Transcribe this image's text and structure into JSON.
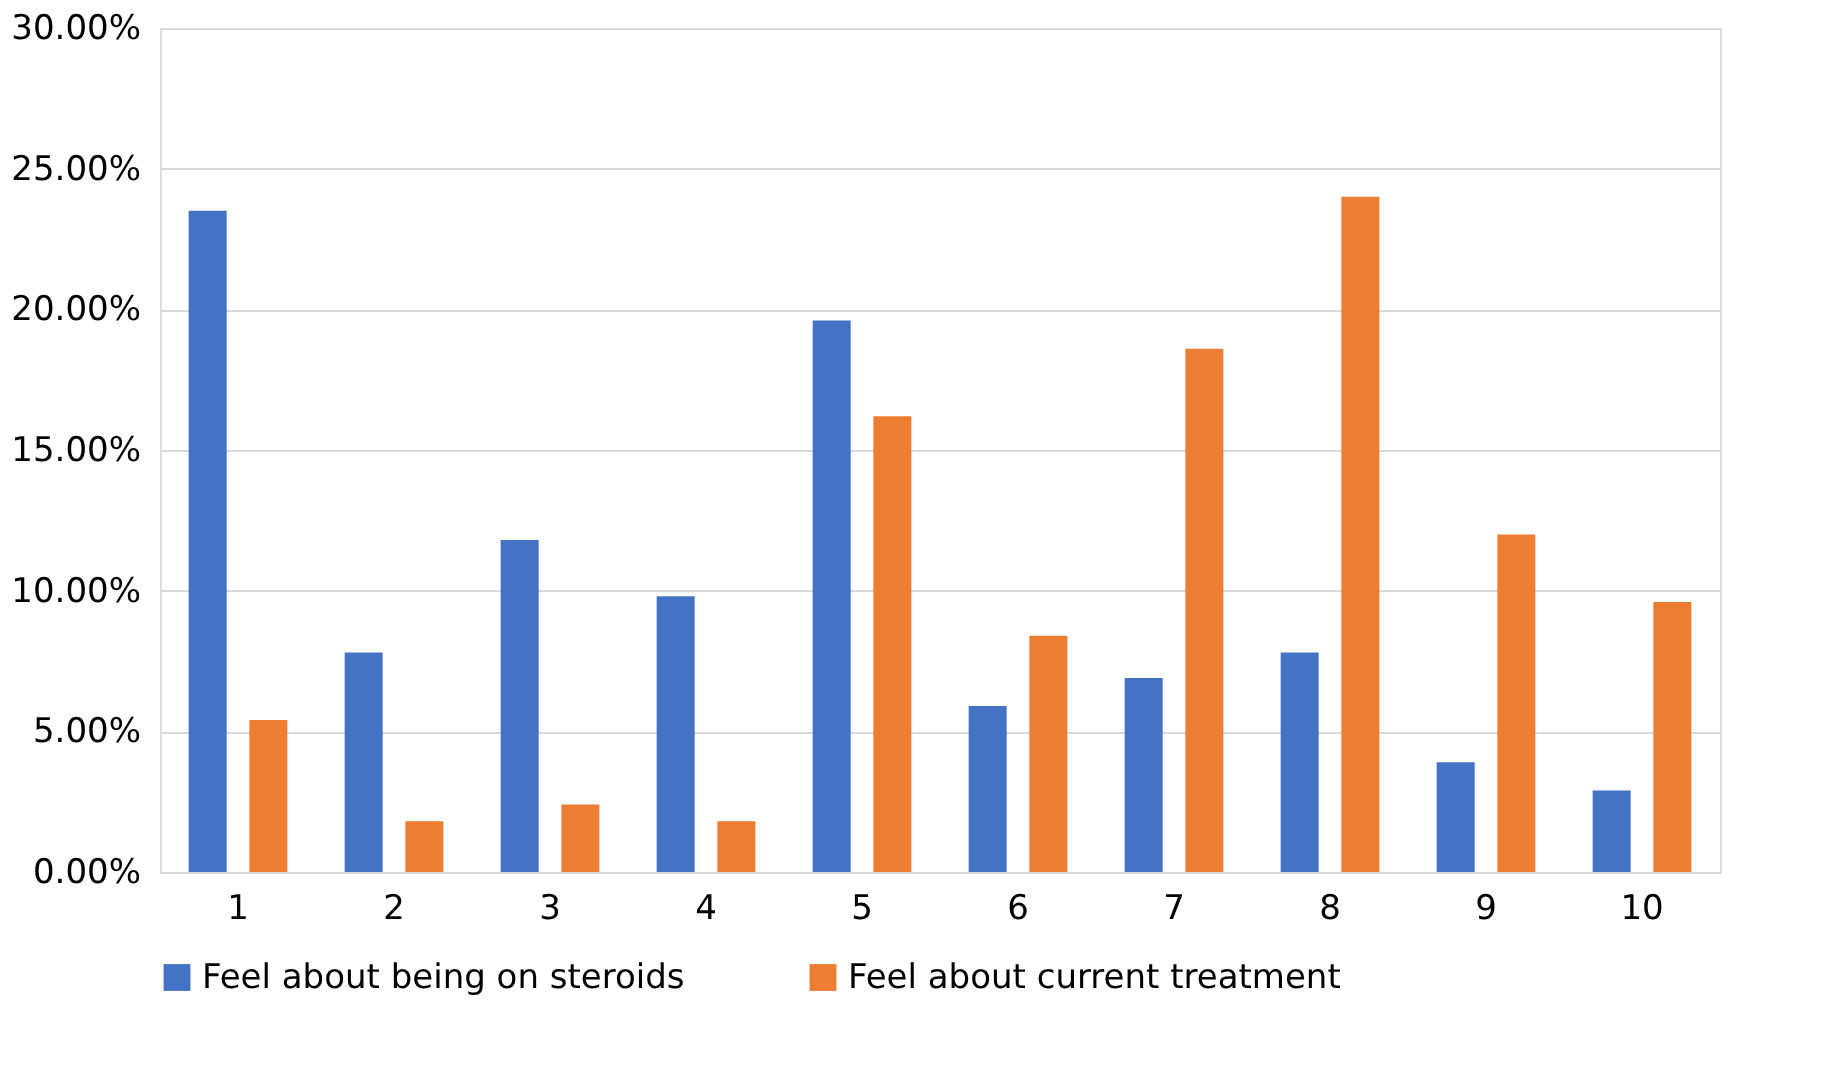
{
  "chart_data": {
    "type": "bar",
    "categories": [
      "1",
      "2",
      "3",
      "4",
      "5",
      "6",
      "7",
      "8",
      "9",
      "10"
    ],
    "series": [
      {
        "name": "Feel about being on steroids",
        "color": "#4472c4",
        "values": [
          23.5,
          7.8,
          11.8,
          9.8,
          19.6,
          5.9,
          6.9,
          7.8,
          3.9,
          2.9
        ]
      },
      {
        "name": "Feel about current treatment",
        "color": "#ed7d31",
        "values": [
          5.4,
          1.8,
          2.4,
          1.8,
          16.2,
          8.4,
          18.6,
          24.0,
          12.0,
          9.6
        ]
      }
    ],
    "ylim": [
      0,
      30
    ],
    "yticks": [
      {
        "value": 0,
        "label": "0.00%"
      },
      {
        "value": 5,
        "label": "5.00%"
      },
      {
        "value": 10,
        "label": "10.00%"
      },
      {
        "value": 15,
        "label": "15.00%"
      },
      {
        "value": 20,
        "label": "20.00%"
      },
      {
        "value": 25,
        "label": "25.00%"
      },
      {
        "value": 30,
        "label": "30.00%"
      }
    ],
    "grid": "y",
    "legend": "bottom"
  }
}
